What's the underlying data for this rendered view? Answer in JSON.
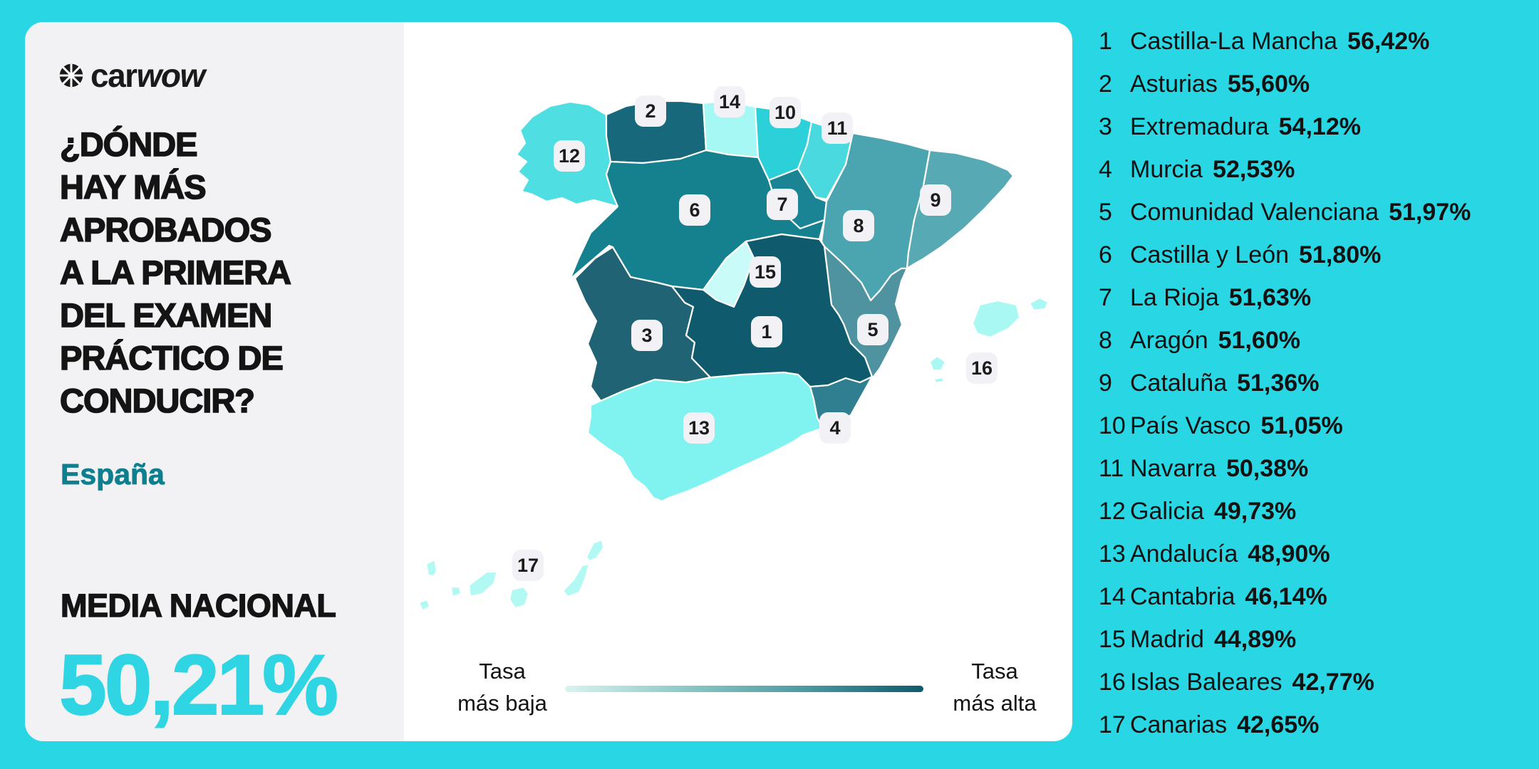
{
  "brand": {
    "logo_text_car": "car",
    "logo_text_wow": "wow"
  },
  "header": {
    "title_lines": [
      "¿DÓNDE",
      "HAY MÁS",
      "APROBADOS",
      "A LA PRIMERA",
      "DEL EXAMEN",
      "PRÁCTICO DE",
      "CONDUCIR?"
    ],
    "subtitle": "España"
  },
  "national_average": {
    "label": "MEDIA NACIONAL",
    "value": "50,21%"
  },
  "legend": {
    "low_line1": "Tasa",
    "low_line2": "más baja",
    "high_line1": "Tasa",
    "high_line2": "más alta"
  },
  "colors": {
    "background": "#28d7e3",
    "panel": "#f2f1f4",
    "map_bg": "#ffffff",
    "accent_teal": "#0e7f8e",
    "accent_cyan": "#2fd5e2",
    "badge_bg": "#f2f1f6",
    "scale_low": "#d9f3ef",
    "scale_high": "#0f5a6c"
  },
  "chart_data": {
    "type": "choropleth",
    "title": "¿Dónde hay más aprobados a la primera del examen práctico de conducir?",
    "area": "España",
    "unit": "%",
    "national_average": 50.21,
    "legend": {
      "low_label": "Tasa más baja",
      "high_label": "Tasa más alta"
    },
    "regions": [
      {
        "rank": 1,
        "name": "Castilla-La Mancha",
        "value": 56.42,
        "label": "56,42%",
        "color": "#0f5b6d"
      },
      {
        "rank": 2,
        "name": "Asturias",
        "value": 55.6,
        "label": "55,60%",
        "color": "#16687a"
      },
      {
        "rank": 3,
        "name": "Extremadura",
        "value": 54.12,
        "label": "54,12%",
        "color": "#1f6374"
      },
      {
        "rank": 4,
        "name": "Murcia",
        "value": 52.53,
        "label": "52,53%",
        "color": "#2f7f90"
      },
      {
        "rank": 5,
        "name": "Comunidad Valenciana",
        "value": 51.97,
        "label": "51,97%",
        "color": "#4f92a0"
      },
      {
        "rank": 6,
        "name": "Castilla y León",
        "value": 51.8,
        "label": "51,80%",
        "color": "#15818f"
      },
      {
        "rank": 7,
        "name": "La Rioja",
        "value": 51.63,
        "label": "51,63%",
        "color": "#1a8495"
      },
      {
        "rank": 8,
        "name": "Aragón",
        "value": 51.6,
        "label": "51,60%",
        "color": "#4ba5b0"
      },
      {
        "rank": 9,
        "name": "Cataluña",
        "value": 51.36,
        "label": "51,36%",
        "color": "#57aab3"
      },
      {
        "rank": 10,
        "name": "País Vasco",
        "value": 51.05,
        "label": "51,05%",
        "color": "#2bd0d9"
      },
      {
        "rank": 11,
        "name": "Navarra",
        "value": 50.38,
        "label": "50,38%",
        "color": "#49d9de"
      },
      {
        "rank": 12,
        "name": "Galicia",
        "value": 49.73,
        "label": "49,73%",
        "color": "#4fdfe2"
      },
      {
        "rank": 13,
        "name": "Andalucía",
        "value": 48.9,
        "label": "48,90%",
        "color": "#80f3f0"
      },
      {
        "rank": 14,
        "name": "Cantabria",
        "value": 46.14,
        "label": "46,14%",
        "color": "#a6f8f5"
      },
      {
        "rank": 15,
        "name": "Madrid",
        "value": 44.89,
        "label": "44,89%",
        "color": "#c9fcf9"
      },
      {
        "rank": 16,
        "name": "Islas Baleares",
        "value": 42.77,
        "label": "42,77%",
        "color": "#a9f8f3"
      },
      {
        "rank": 17,
        "name": "Canarias",
        "value": 42.65,
        "label": "42,65%",
        "color": "#b2f9f4"
      }
    ]
  }
}
